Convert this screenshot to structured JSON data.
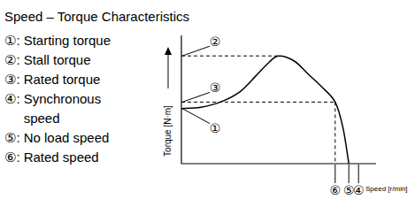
{
  "chart_data": {
    "type": "line",
    "title": "Speed – Torque Characteristics",
    "legend_items": [
      {
        "symbol": "①:",
        "text": "Starting torque"
      },
      {
        "symbol": "②:",
        "text": "Stall torque"
      },
      {
        "symbol": "③:",
        "text": "Rated torque"
      },
      {
        "symbol": "④:",
        "text": "Synchronous speed"
      },
      {
        "symbol": "⑤:",
        "text": "No load speed"
      },
      {
        "symbol": "⑥:",
        "text": "Rated speed"
      }
    ],
    "x_label": "Speed [r/min]",
    "y_label": "Torque [N·m]",
    "x": [
      0,
      10,
      20,
      30,
      38,
      45,
      50,
      58,
      65,
      72,
      79,
      83,
      86
    ],
    "values": [
      43,
      44,
      48,
      56,
      68,
      79,
      84,
      80,
      70,
      60,
      48,
      28,
      0
    ],
    "color": "#000000",
    "xlim": [
      0,
      100
    ],
    "ylim": [
      0,
      100
    ],
    "xticks": [],
    "yticks": [],
    "tick_labels": false,
    "annotations": [
      {
        "text": "②",
        "x": 50,
        "y": 84,
        "anchor": "y",
        "line_style": "dashed"
      },
      {
        "text": "③",
        "x": 79,
        "y": 48,
        "anchor": "y",
        "line_style": "dashed"
      },
      {
        "text": "①",
        "x": 0,
        "y": 43,
        "anchor": "y"
      },
      {
        "text": "⑥",
        "x": 79,
        "y": 48,
        "anchor": "x",
        "line_style": "dashed"
      },
      {
        "text": "⑤",
        "x": 86,
        "y": 0,
        "anchor": "x"
      },
      {
        "text": "④",
        "x": 91,
        "y": 0,
        "anchor": "x"
      }
    ]
  }
}
